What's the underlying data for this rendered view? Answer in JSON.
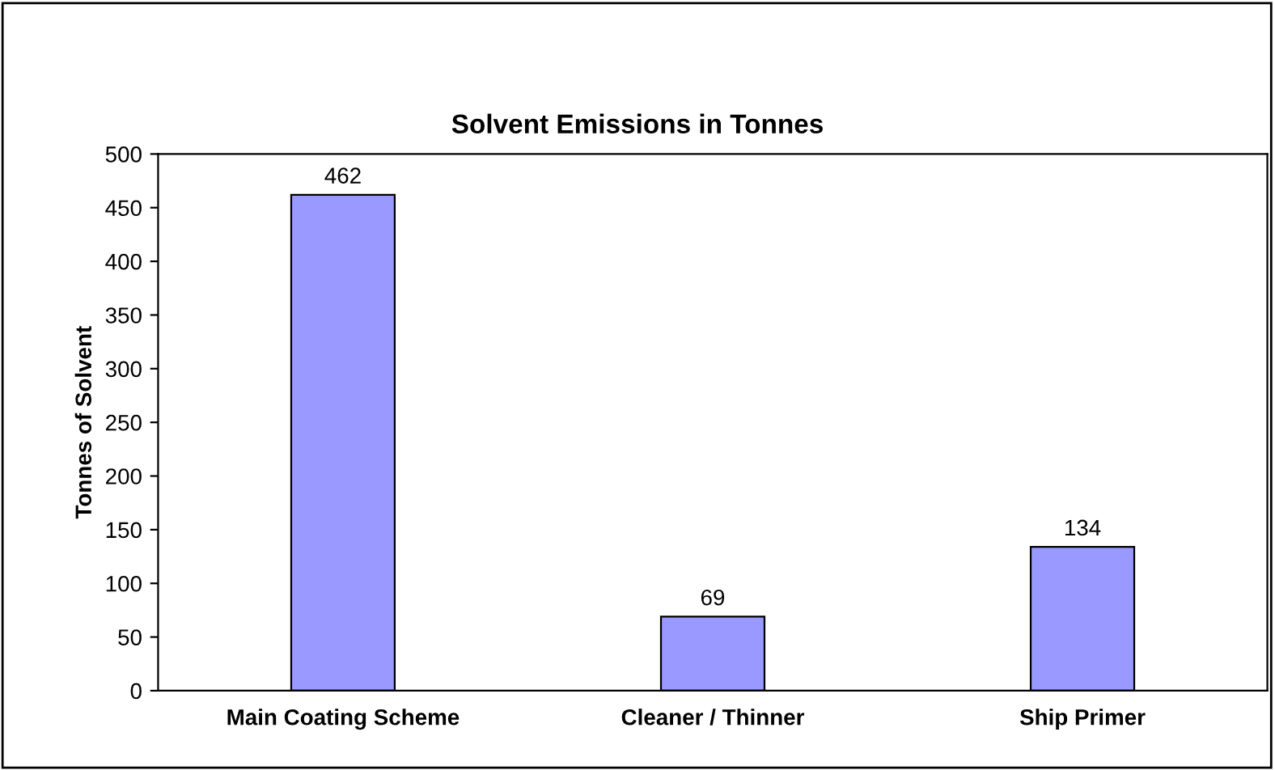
{
  "chart_data": {
    "type": "bar",
    "title": "Solvent Emissions in Tonnes",
    "ylabel": "Tonnes of Solvent",
    "categories": [
      "Main Coating Scheme",
      "Cleaner / Thinner",
      "Ship Primer"
    ],
    "values": [
      462,
      69,
      134
    ],
    "color": "#9999ff",
    "data_labels": true,
    "ylim": [
      0,
      500
    ],
    "yticks": [
      0,
      50,
      100,
      150,
      200,
      250,
      300,
      350,
      400,
      450,
      500
    ],
    "grid": false,
    "legend": false
  }
}
